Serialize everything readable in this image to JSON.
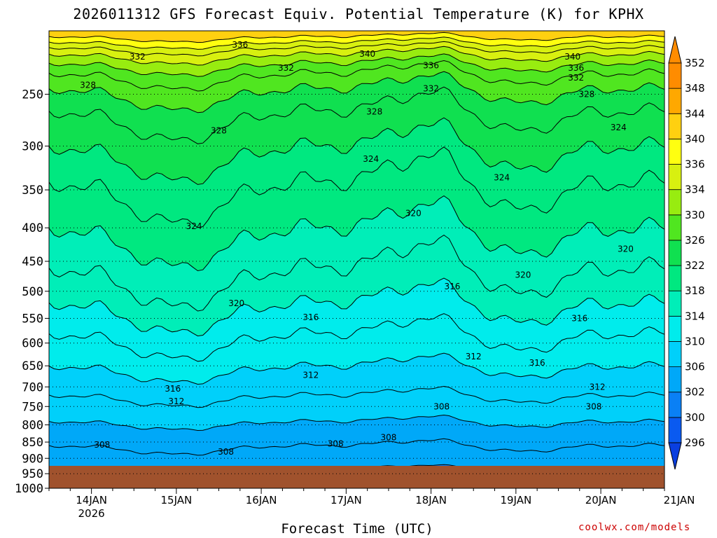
{
  "chart_data": {
    "type": "heatmap",
    "title": "2026011312 GFS Forecast Equiv. Potential Temperature (K) for KPHX",
    "xlabel": "Forecast Time (UTC)",
    "ylabel": "",
    "x_ticks": [
      {
        "label": "14JAN",
        "sub": "2026",
        "t": 12
      },
      {
        "label": "15JAN",
        "sub": "",
        "t": 36
      },
      {
        "label": "16JAN",
        "sub": "",
        "t": 60
      },
      {
        "label": "17JAN",
        "sub": "",
        "t": 84
      },
      {
        "label": "18JAN",
        "sub": "",
        "t": 108
      },
      {
        "label": "19JAN",
        "sub": "",
        "t": 132
      },
      {
        "label": "20JAN",
        "sub": "",
        "t": 156
      },
      {
        "label": "21JAN",
        "sub": "",
        "t": 180
      }
    ],
    "x_range": [
      0,
      174
    ],
    "y_ticks": [
      250,
      300,
      350,
      400,
      450,
      500,
      550,
      600,
      650,
      700,
      750,
      800,
      850,
      900,
      950,
      1000
    ],
    "y_range": [
      200,
      1000
    ],
    "y_scale": "log",
    "colorbar": {
      "levels": [
        296,
        300,
        302,
        306,
        310,
        314,
        318,
        322,
        326,
        330,
        334,
        336,
        340,
        344,
        348,
        352
      ],
      "colors": [
        "#0a3fe0",
        "#0a5af0",
        "#0a80f5",
        "#00a8f8",
        "#00d0fa",
        "#00ecec",
        "#00eeb8",
        "#00e880",
        "#10e050",
        "#50e620",
        "#98ec10",
        "#d8f010",
        "#ffff10",
        "#ffd010",
        "#ffa800",
        "#ff8c00"
      ]
    },
    "contour_labels": [
      {
        "text": "336",
        "t": 54,
        "p": 210
      },
      {
        "text": "332",
        "t": 25,
        "p": 219
      },
      {
        "text": "340",
        "t": 90,
        "p": 217
      },
      {
        "text": "340",
        "t": 148,
        "p": 219
      },
      {
        "text": "336",
        "t": 108,
        "p": 226
      },
      {
        "text": "336",
        "t": 149,
        "p": 228
      },
      {
        "text": "332",
        "t": 67,
        "p": 228
      },
      {
        "text": "332",
        "t": 149,
        "p": 236
      },
      {
        "text": "332",
        "t": 108,
        "p": 245
      },
      {
        "text": "328",
        "t": 11,
        "p": 242
      },
      {
        "text": "328",
        "t": 152,
        "p": 250
      },
      {
        "text": "328",
        "t": 92,
        "p": 266
      },
      {
        "text": "328",
        "t": 48,
        "p": 284
      },
      {
        "text": "324",
        "t": 161,
        "p": 281
      },
      {
        "text": "324",
        "t": 91,
        "p": 314
      },
      {
        "text": "324",
        "t": 128,
        "p": 335
      },
      {
        "text": "320",
        "t": 103,
        "p": 380
      },
      {
        "text": "324",
        "t": 41,
        "p": 398
      },
      {
        "text": "320",
        "t": 163,
        "p": 431
      },
      {
        "text": "320",
        "t": 134,
        "p": 472
      },
      {
        "text": "316",
        "t": 114,
        "p": 492
      },
      {
        "text": "320",
        "t": 53,
        "p": 522
      },
      {
        "text": "316",
        "t": 150,
        "p": 550
      },
      {
        "text": "316",
        "t": 74,
        "p": 548
      },
      {
        "text": "312",
        "t": 120,
        "p": 629
      },
      {
        "text": "316",
        "t": 138,
        "p": 643
      },
      {
        "text": "312",
        "t": 74,
        "p": 672
      },
      {
        "text": "312",
        "t": 155,
        "p": 700
      },
      {
        "text": "316",
        "t": 35,
        "p": 705
      },
      {
        "text": "312",
        "t": 36,
        "p": 737
      },
      {
        "text": "308",
        "t": 111,
        "p": 750
      },
      {
        "text": "308",
        "t": 154,
        "p": 750
      },
      {
        "text": "308",
        "t": 96,
        "p": 836
      },
      {
        "text": "308",
        "t": 81,
        "p": 855
      },
      {
        "text": "308",
        "t": 15,
        "p": 858
      },
      {
        "text": "308",
        "t": 50,
        "p": 880
      }
    ],
    "legend": "colorbar-right",
    "grid": "dotted-horizontal"
  },
  "credit": "coolwx.com/models"
}
